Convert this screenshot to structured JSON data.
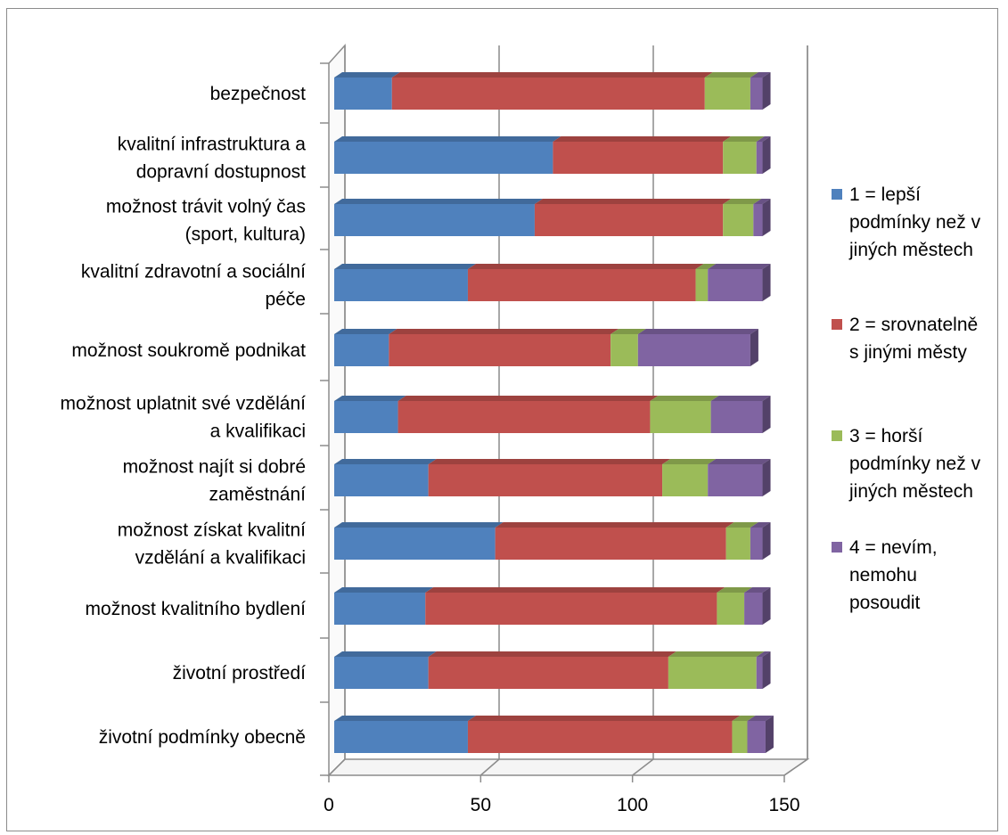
{
  "chart_data": {
    "type": "bar",
    "orientation": "horizontal",
    "stacked": true,
    "three_d": true,
    "categories": [
      [
        "bezpečnost"
      ],
      [
        "kvalitní infrastruktura a",
        "dopravní dostupnost"
      ],
      [
        "možnost trávit volný čas",
        "(sport, kultura)"
      ],
      [
        "kvalitní zdravotní a sociální",
        "péče"
      ],
      [
        "možnost soukromě podnikat"
      ],
      [
        "možnost uplatnit své vzdělání",
        "a kvalifikaci"
      ],
      [
        "možnost najít si dobré",
        "zaměstnání"
      ],
      [
        "možnost získat kvalitní",
        "vzdělání a kvalifikaci"
      ],
      [
        "možnost kvalitního bydlení"
      ],
      [
        "životní prostředí"
      ],
      [
        "životní podmínky obecně"
      ]
    ],
    "series": [
      {
        "name": [
          "1 = lepší",
          "podmínky než v",
          "jiných městech"
        ],
        "color": "#4f81bd",
        "values": [
          19,
          72,
          66,
          44,
          18,
          21,
          31,
          53,
          30,
          31,
          44
        ]
      },
      {
        "name": [
          "2 = srovnatelně",
          "s jinými městy"
        ],
        "color": "#c0504d",
        "values": [
          103,
          56,
          62,
          75,
          73,
          83,
          77,
          76,
          96,
          79,
          87
        ]
      },
      {
        "name": [
          "3 = horší",
          "podmínky než v",
          "jiných městech"
        ],
        "color": "#9bbb59",
        "values": [
          15,
          11,
          10,
          4,
          9,
          20,
          15,
          8,
          9,
          29,
          5
        ]
      },
      {
        "name": [
          "4 = nevím,",
          "nemohu",
          "posoudit"
        ],
        "color": "#8064a2",
        "values": [
          4,
          2,
          3,
          18,
          37,
          17,
          18,
          4,
          6,
          2,
          6
        ]
      }
    ],
    "xlim": [
      0,
      150
    ],
    "xticks": [
      "0",
      "50",
      "100",
      "150"
    ],
    "grid": true,
    "legend_position": "right",
    "title": "",
    "xlabel": "",
    "ylabel": ""
  }
}
